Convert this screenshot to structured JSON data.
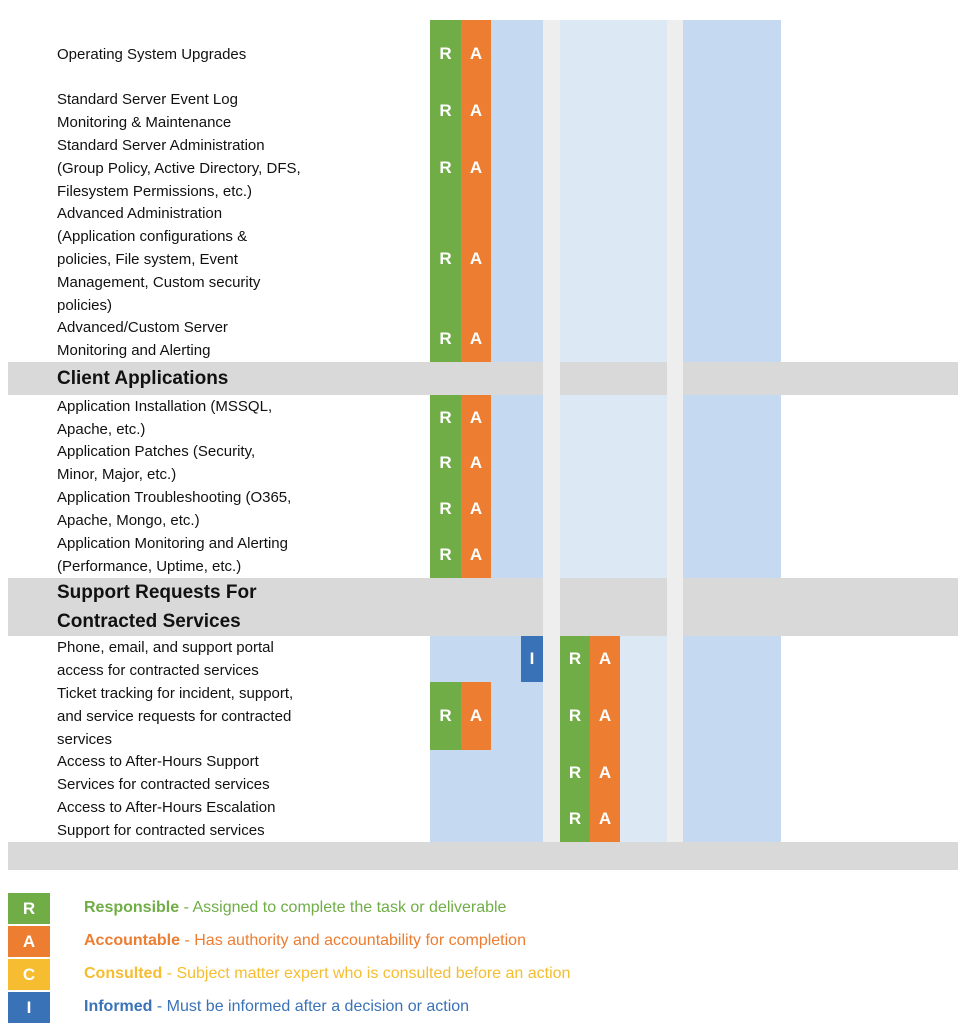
{
  "rows": [
    {
      "task": [
        "Operating System Upgrades"
      ],
      "cells": [
        "R",
        "A",
        null,
        null,
        null,
        null,
        null,
        null,
        null,
        null,
        null,
        null
      ]
    },
    {
      "task": [
        "Standard Server Event Log",
        "Monitoring & Maintenance"
      ],
      "cells": [
        "R",
        "A",
        null,
        null,
        null,
        null,
        null,
        null,
        null,
        null,
        null,
        null
      ]
    },
    {
      "task": [
        "Standard Server Administration",
        "(Group Policy, Active Directory, DFS,",
        "Filesystem Permissions, etc.)"
      ],
      "cells": [
        "R",
        "A",
        null,
        null,
        null,
        null,
        null,
        null,
        null,
        null,
        null,
        null
      ]
    },
    {
      "task": [
        "Advanced Administration",
        "(Application configurations &",
        "policies, File system, Event",
        "Management, Custom security",
        "policies)"
      ],
      "cells": [
        "R",
        "A",
        null,
        null,
        null,
        null,
        null,
        null,
        null,
        null,
        null,
        null
      ]
    },
    {
      "task": [
        "Advanced/Custom Server",
        "Monitoring and Alerting"
      ],
      "cells": [
        "R",
        "A",
        null,
        null,
        null,
        null,
        null,
        null,
        null,
        null,
        null,
        null
      ]
    },
    {
      "heading": [
        "Client Applications"
      ]
    },
    {
      "task": [
        "Application Installation (MSSQL,",
        "Apache, etc.)"
      ],
      "cells": [
        "R",
        "A",
        null,
        null,
        null,
        null,
        null,
        null,
        null,
        null,
        null,
        null
      ]
    },
    {
      "task": [
        "Application Patches (Security,",
        "Minor, Major, etc.)"
      ],
      "cells": [
        "R",
        "A",
        null,
        null,
        null,
        null,
        null,
        null,
        null,
        null,
        null,
        null
      ]
    },
    {
      "task": [
        "Application Troubleshooting (O365,",
        "Apache, Mongo, etc.)"
      ],
      "cells": [
        "R",
        "A",
        null,
        null,
        null,
        null,
        null,
        null,
        null,
        null,
        null,
        null
      ]
    },
    {
      "task": [
        "Application Monitoring and Alerting",
        "(Performance, Uptime, etc.)"
      ],
      "cells": [
        "R",
        "A",
        null,
        null,
        null,
        null,
        null,
        null,
        null,
        null,
        null,
        null
      ]
    },
    {
      "heading": [
        "Support Requests For",
        "Contracted Services"
      ]
    },
    {
      "task": [
        "Phone, email, and support portal",
        "access for contracted services"
      ],
      "cells": [
        null,
        null,
        null,
        "I",
        "R",
        "A",
        null,
        null,
        null,
        null,
        null,
        null
      ]
    },
    {
      "task": [
        "Ticket tracking for incident, support,",
        "and service requests for contracted",
        "services"
      ],
      "cells": [
        "R",
        "A",
        null,
        null,
        "R",
        "A",
        null,
        null,
        null,
        null,
        null,
        null
      ]
    },
    {
      "task": [
        "Access to After-Hours Support",
        "Services for contracted services"
      ],
      "cells": [
        null,
        null,
        null,
        null,
        "R",
        "A",
        null,
        null,
        null,
        null,
        null,
        null
      ]
    },
    {
      "task": [
        "Access to After-Hours Escalation",
        "Support for contracted services"
      ],
      "cells": [
        null,
        null,
        null,
        null,
        "R",
        "A",
        null,
        null,
        null,
        null,
        null,
        null
      ]
    }
  ],
  "legend": [
    {
      "letter": "R",
      "term": "Responsible",
      "description": "- Assigned to complete the task or deliverable",
      "color": "#70ad47"
    },
    {
      "letter": "A",
      "term": "Accountable",
      "description": "- Has authority and accountability for completion",
      "color": "#ed7d31"
    },
    {
      "letter": "C",
      "term": "Consulted",
      "description": "- Subject matter expert who is consulted before an action",
      "color": "#f5bd2f"
    },
    {
      "letter": "I",
      "term": "Informed",
      "description": "- Must be informed after a decision or action",
      "color": "#3a72b8"
    }
  ]
}
